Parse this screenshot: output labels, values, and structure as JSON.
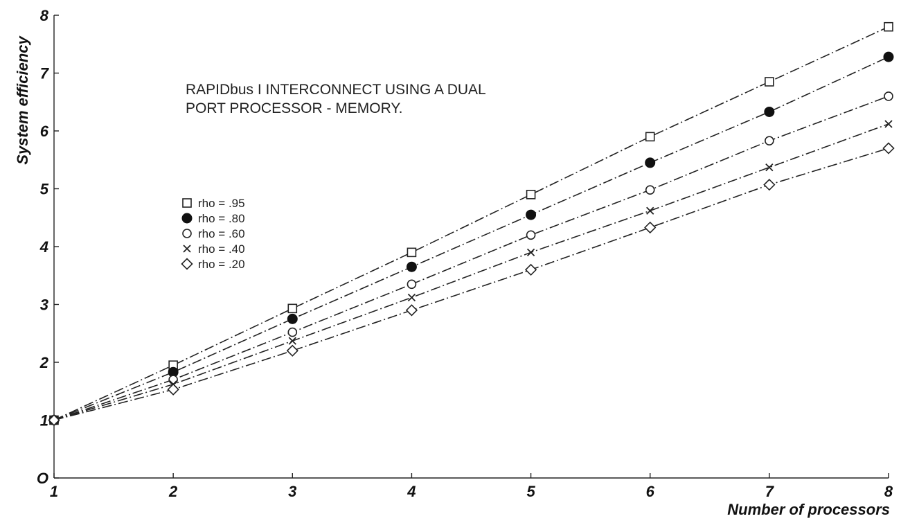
{
  "chart_data": {
    "type": "line",
    "title": "",
    "annotation": [
      "RAPIDbus I INTERCONNECT USING A DUAL",
      "PORT PROCESSOR - MEMORY."
    ],
    "xlabel": "Number of processors",
    "ylabel": "System efficiency",
    "x": [
      1,
      2,
      3,
      4,
      5,
      6,
      7,
      8
    ],
    "x_tick_labels": [
      "1",
      "2",
      "3",
      "4",
      "5",
      "6",
      "7",
      "8"
    ],
    "y_tick_labels": [
      "O",
      "1",
      "2",
      "3",
      "4",
      "5",
      "6",
      "7",
      "8"
    ],
    "xlim": [
      1,
      8
    ],
    "ylim": [
      0,
      8
    ],
    "grid": false,
    "legend_position": "left",
    "series": [
      {
        "name": "rho = .95",
        "marker": "square-open",
        "values": [
          1,
          1.95,
          2.93,
          3.9,
          4.9,
          5.9,
          6.85,
          7.8
        ]
      },
      {
        "name": "rho = .80",
        "marker": "circle-filled",
        "values": [
          1,
          1.83,
          2.75,
          3.65,
          4.55,
          5.45,
          6.33,
          7.28
        ]
      },
      {
        "name": "rho = .60",
        "marker": "circle-open",
        "values": [
          1,
          1.7,
          2.52,
          3.35,
          4.2,
          4.98,
          5.83,
          6.6
        ]
      },
      {
        "name": "rho = .40",
        "marker": "x",
        "values": [
          1,
          1.62,
          2.37,
          3.12,
          3.9,
          4.62,
          5.37,
          6.12
        ]
      },
      {
        "name": "rho = .20",
        "marker": "diamond-open",
        "values": [
          1,
          1.53,
          2.2,
          2.9,
          3.6,
          4.33,
          5.07,
          5.7
        ]
      }
    ]
  }
}
